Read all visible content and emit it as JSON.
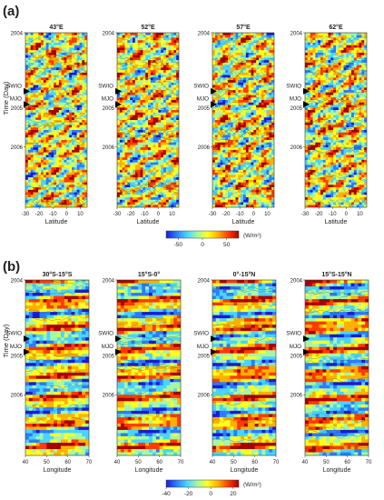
{
  "panels": [
    {
      "label": "(a)",
      "ylabel": "Time (Day)",
      "xlabel": "Latitude",
      "colorbar": {
        "unit": "(W/m²)",
        "ticks": [
          "-50",
          "0",
          "50"
        ],
        "range": [
          -75,
          75
        ],
        "colors": [
          "#1b1bd0",
          "#2e7bff",
          "#49d4ff",
          "#a6f7a4",
          "#ffff20",
          "#ffb000",
          "#ff3b00",
          "#a80000"
        ]
      },
      "chart_data": {
        "type": "heatmap",
        "subplots": [
          {
            "title": "43°E"
          },
          {
            "title": "52°E"
          },
          {
            "title": "57°E"
          },
          {
            "title": "62°E"
          }
        ],
        "x": {
          "label": "Latitude",
          "range": [
            -30,
            15
          ],
          "ticks": [
            "-30",
            "-20",
            "-10",
            "0",
            "10"
          ]
        },
        "y": {
          "label": "Time (Day)",
          "range": [
            "2004",
            "2007"
          ],
          "ticks": [
            "2004",
            "2005",
            "2006"
          ]
        },
        "markers": [
          "SWIO",
          "MJO"
        ],
        "value_range": [
          -75,
          75
        ]
      }
    },
    {
      "label": "(b)",
      "ylabel": "Time (Day)",
      "xlabel": "Longitude",
      "colorbar": {
        "unit": "(W/m²)",
        "ticks": [
          "-40",
          "-20",
          "0",
          "20"
        ],
        "range": [
          -40,
          25
        ],
        "colors": [
          "#1b1bd0",
          "#2e7bff",
          "#49d4ff",
          "#a6f7a4",
          "#ffff20",
          "#ffb000",
          "#ff3b00",
          "#a80000"
        ]
      },
      "chart_data": {
        "type": "heatmap",
        "subplots": [
          {
            "title": "30°S-15°S"
          },
          {
            "title": "15°S-0°"
          },
          {
            "title": "0°-15°N"
          },
          {
            "title": "15°S-15°N"
          }
        ],
        "x": {
          "label": "Longitude",
          "range": [
            40,
            70
          ],
          "ticks": [
            "40",
            "50",
            "60",
            "70"
          ]
        },
        "y": {
          "label": "Time (Day)",
          "range": [
            "2004",
            "2007"
          ],
          "ticks": [
            "2004",
            "2005",
            "2006"
          ]
        },
        "markers": [
          "SWIO",
          "MJO"
        ],
        "value_range": [
          -40,
          25
        ]
      }
    }
  ]
}
